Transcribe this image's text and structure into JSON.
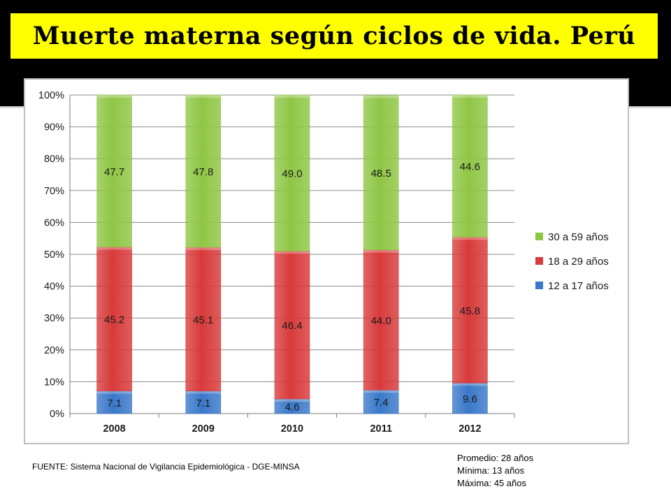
{
  "title": "Muerte materna según ciclos de vida. Perú",
  "colors": {
    "title_bg": "#ffff00",
    "band": "#000000",
    "green": "#8fc645",
    "red": "#d83a3a",
    "blue": "#3a78c9"
  },
  "chart_data": {
    "type": "bar",
    "stacked": true,
    "categories": [
      "2008",
      "2009",
      "2010",
      "2011",
      "2012"
    ],
    "series": [
      {
        "name": "12 a 17 años",
        "color": "#3a78c9",
        "values": [
          7.1,
          7.1,
          4.6,
          7.4,
          9.6
        ],
        "labels": [
          "7.1",
          "7.1",
          "4.6",
          "7.4",
          "9.6"
        ]
      },
      {
        "name": "18 a 29 años",
        "color": "#d83a3a",
        "values": [
          45.2,
          45.1,
          46.4,
          44.0,
          45.8
        ],
        "labels": [
          "45.2",
          "45.1",
          "46.4",
          "44.0",
          "45.8"
        ]
      },
      {
        "name": "30 a 59 años",
        "color": "#8fc645",
        "values": [
          47.7,
          47.8,
          49.0,
          48.5,
          44.6
        ],
        "labels": [
          "47.7",
          "47.8",
          "49.0",
          "48.5",
          "44.6"
        ]
      }
    ],
    "yticks": [
      "0%",
      "10%",
      "20%",
      "30%",
      "40%",
      "50%",
      "60%",
      "70%",
      "80%",
      "90%",
      "100%"
    ],
    "ylim": [
      0,
      100
    ],
    "grid": true,
    "legend_position": "right"
  },
  "footer": {
    "source": "FUENTE: Sistema Nacional de Vigilancia Epidemiológica - DGE-MINSA",
    "stats": [
      "Promedio: 28 años",
      "Mínima: 13 años",
      "Máxima: 45 años"
    ]
  }
}
